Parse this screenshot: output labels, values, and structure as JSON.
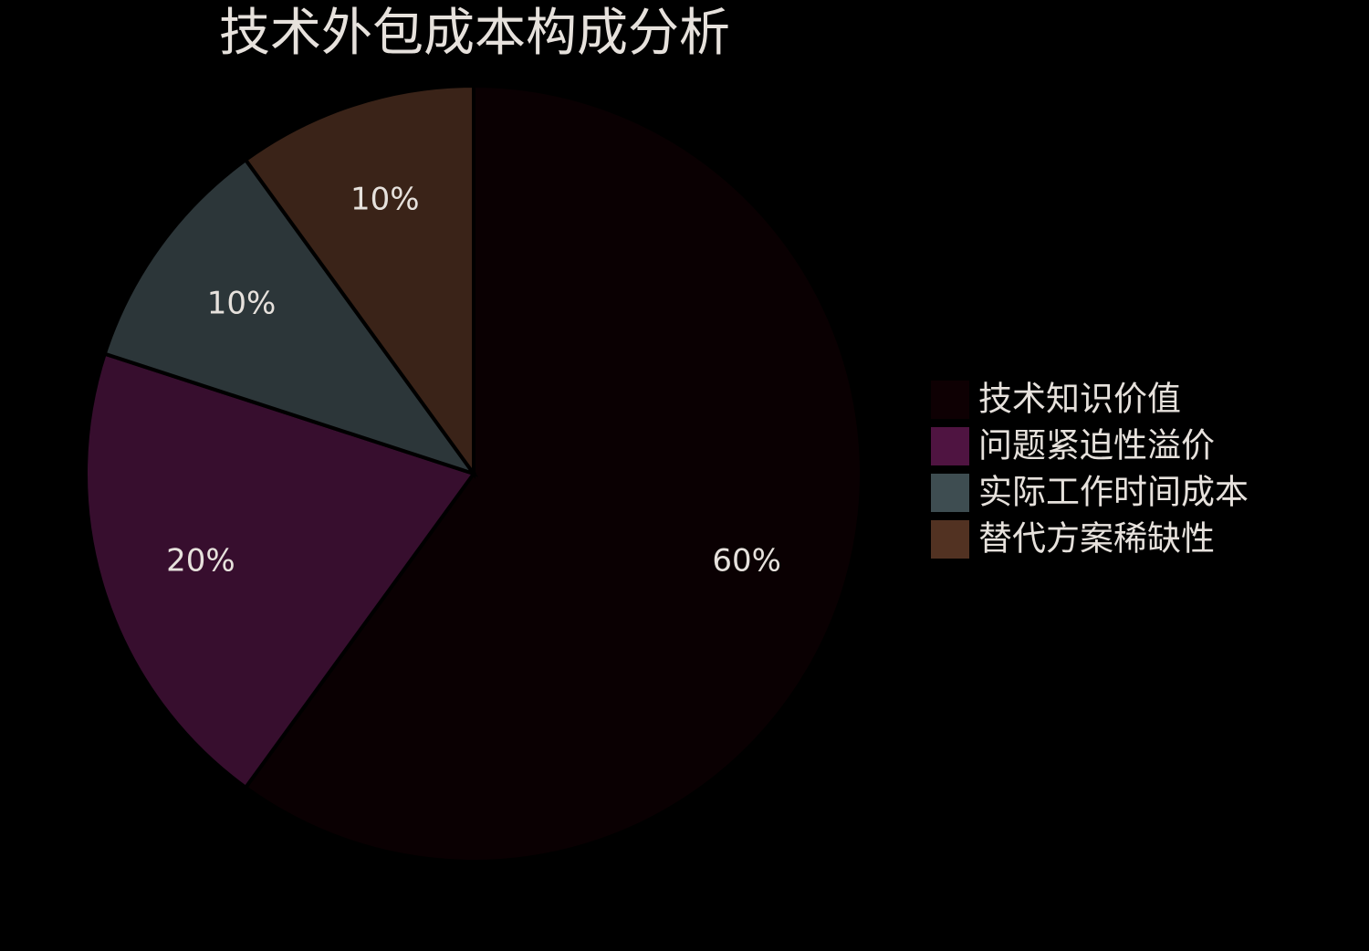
{
  "chart_data": {
    "type": "pie",
    "title": "技术外包成本构成分析",
    "categories": [
      "技术知识价值",
      "问题紧迫性溢价",
      "实际工作时间成本",
      "替代方案稀缺性"
    ],
    "values": [
      60,
      20,
      10,
      10
    ],
    "value_labels": [
      "60%",
      "20%",
      "10%",
      "10%"
    ],
    "colors": [
      "#0e0003",
      "#4f1441",
      "#3e4d51",
      "#523222"
    ],
    "legend": "right"
  }
}
